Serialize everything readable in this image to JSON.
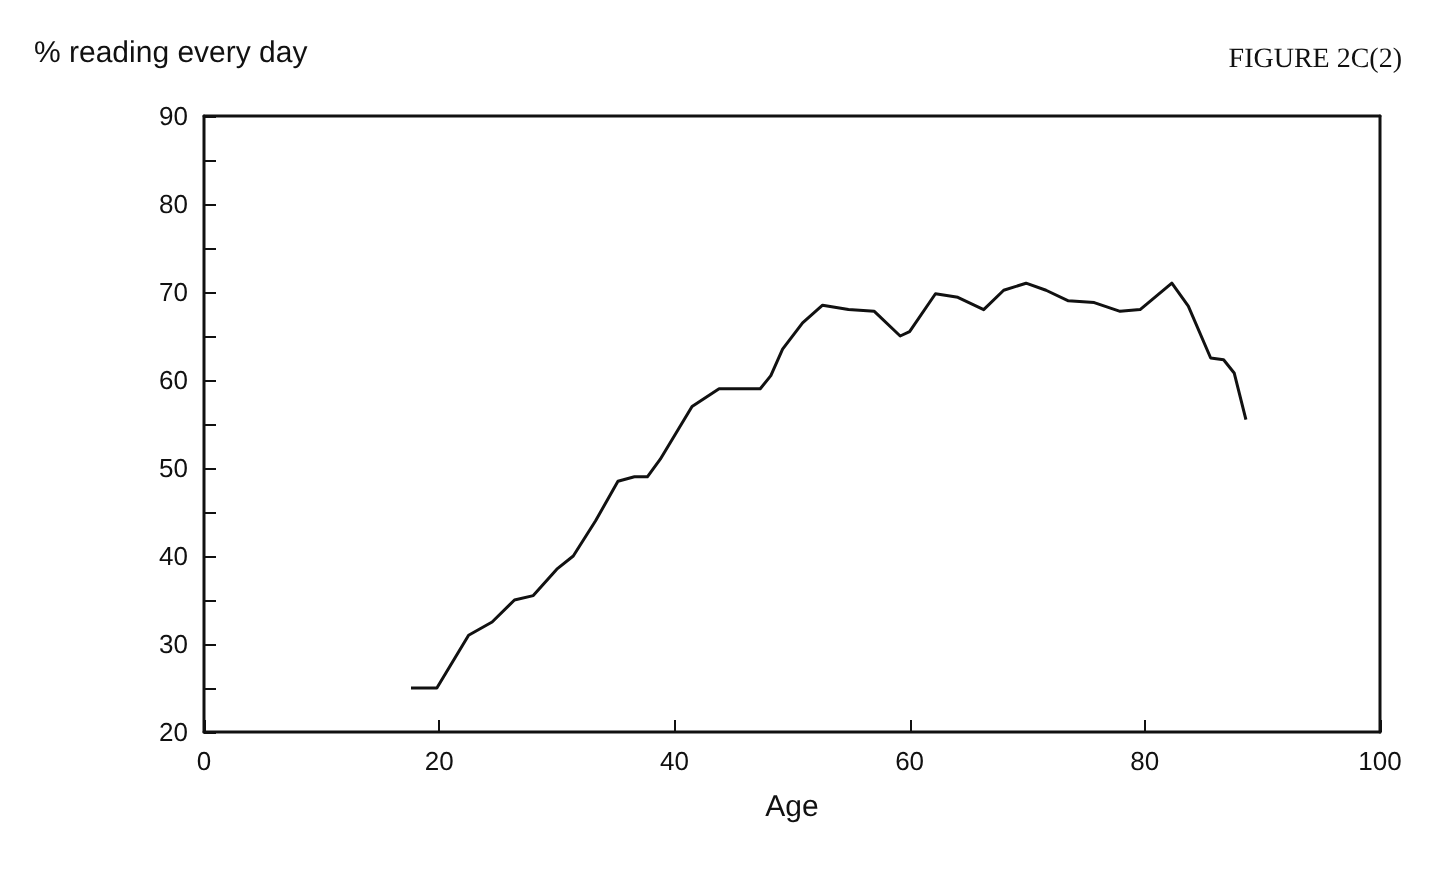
{
  "chart_data": {
    "type": "line",
    "title": "FIGURE 2C(2)",
    "xlabel": "Age",
    "ylabel": "% reading every day",
    "x": [
      17.6,
      19.8,
      22.5,
      24.5,
      26.4,
      28,
      30,
      31.4,
      33.3,
      35.2,
      36.6,
      37.7,
      38.8,
      41.5,
      43.8,
      47.3,
      48.2,
      49.2,
      50.9,
      52.6,
      54.8,
      57,
      59.2,
      60,
      62.2,
      64.1,
      66.3,
      68,
      69.9,
      71.6,
      73.5,
      75.7,
      77.9,
      79.6,
      82.3,
      83.7,
      85.6,
      86.7,
      87.6,
      88.6
    ],
    "series": [
      {
        "color": "#111111",
        "values": [
          25,
          25,
          31,
          32.5,
          35,
          35.5,
          38.5,
          40,
          44,
          48.5,
          49,
          49,
          51,
          57,
          59,
          59,
          60.5,
          63.5,
          66.5,
          68.5,
          68,
          67.8,
          65,
          65.5,
          69.8,
          69.4,
          68,
          70.2,
          71,
          70.2,
          69,
          68.8,
          67.8,
          68,
          71,
          68.4,
          62.5,
          62.3,
          60.8,
          55.5
        ]
      }
    ],
    "xlim": [
      0,
      100
    ],
    "xticks": [
      0,
      20,
      40,
      60,
      80,
      100
    ],
    "ylim": [
      20,
      90
    ],
    "yticks": [
      20,
      {
        "value": 25,
        "label": null
      },
      30,
      {
        "value": 35,
        "label": null
      },
      40,
      {
        "value": 45,
        "label": null
      },
      50,
      {
        "value": 55,
        "label": null
      },
      60,
      {
        "value": 65,
        "label": null
      },
      70,
      {
        "value": 75,
        "label": null
      },
      80,
      {
        "value": 85,
        "label": null
      },
      90
    ],
    "grid": false,
    "marker": "none",
    "line_style": "solid"
  }
}
